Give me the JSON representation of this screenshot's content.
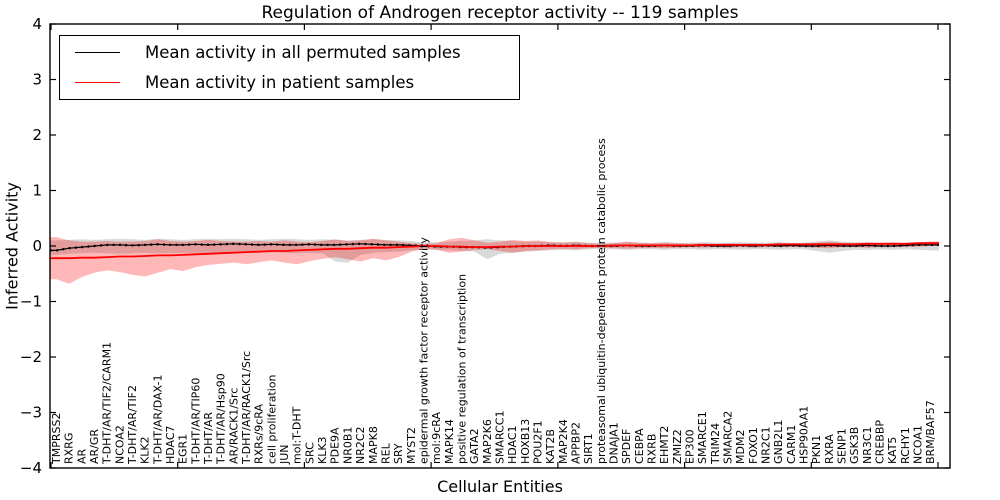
{
  "figure": {
    "title": "Regulation of Androgen receptor activity -- 119 samples",
    "xlabel": "Cellular Entities",
    "ylabel": "Inferred Activity",
    "legend": [
      {
        "label": "Mean activity in all permuted samples",
        "color": "#000000"
      },
      {
        "label": "Mean activity in patient samples",
        "color": "#ff0000"
      }
    ]
  },
  "chart_data": {
    "type": "line",
    "title": "Regulation of Androgen receptor activity -- 119 samples",
    "xlabel": "Cellular Entities",
    "ylabel": "Inferred Activity",
    "ylim": [
      -4,
      4
    ],
    "yticks": [
      -4,
      -3,
      -2,
      -1,
      0,
      1,
      2,
      3,
      4
    ],
    "ytick_labels": [
      "−4",
      "−3",
      "−2",
      "−1",
      "0",
      "1",
      "2",
      "3",
      "4"
    ],
    "grid": false,
    "legend_position": "upper left",
    "colors": {
      "permuted_line": "#000000",
      "patient_line": "#ff0000",
      "permuted_band": "rgba(0,0,0,0.15)",
      "patient_band": "rgba(255,0,0,0.28)"
    },
    "categories": [
      "TMPRSS2",
      "RXRG",
      "AR",
      "AR/GR",
      "T-DHT/AR/TIF2/CARM1",
      "NCOA2",
      "T-DHT/AR/TIF2",
      "KLK2",
      "T-DHT/AR/DAX-1",
      "HDAC7",
      "EGR1",
      "T-DHT/AR/TIP60",
      "T-DHT/AR",
      "T-DHT/AR/Hsp90",
      "AR/RACK1/Src",
      "T-DHT/AR/RACK1/Src",
      "RXRs/9cRA",
      "cell proliferation",
      "JUN",
      "mol:T-DHT",
      "SRC",
      "KLK3",
      "PDE9A",
      "NR0B1",
      "NR2C2",
      "MAPK8",
      "REL",
      "SRY",
      "MYST2",
      "epidermal growth factor receptor activity",
      "mol:9cRA",
      "MAPK14",
      "positive regulation of transcription",
      "GATA2",
      "MAP2K6",
      "SMARCC1",
      "HDAC1",
      "HOXB13",
      "POU2F1",
      "KAT2B",
      "MAP2K4",
      "APPBP2",
      "SIRT1",
      "proteasomal ubiquitin-dependent protein catabolic process",
      "DNAJA1",
      "SPDEF",
      "CEBPA",
      "RXRB",
      "EHMT2",
      "ZMIZ2",
      "EP300",
      "SMARCE1",
      "TRIM24",
      "SMARCA2",
      "MDM2",
      "FOXO1",
      "NR2C1",
      "GNB2L1",
      "CARM1",
      "HSP90AA1",
      "PKN1",
      "RXRA",
      "SENP1",
      "GSK3B",
      "NR3C1",
      "CREBBP",
      "KAT5",
      "RCHY1",
      "NCOA1",
      "BRM/BAF57"
    ],
    "series": [
      {
        "name": "Mean activity in all permuted samples",
        "color": "#000000",
        "values": [
          -0.08,
          -0.04,
          -0.02,
          0.0,
          0.02,
          0.02,
          0.01,
          0.02,
          0.03,
          0.02,
          0.02,
          0.03,
          0.02,
          0.03,
          0.04,
          0.03,
          0.02,
          0.03,
          0.02,
          0.02,
          0.03,
          0.02,
          0.02,
          0.03,
          0.04,
          0.03,
          0.02,
          0.02,
          0.01,
          0.0,
          -0.01,
          -0.01,
          -0.02,
          -0.02,
          -0.03,
          -0.02,
          -0.01,
          0.0,
          0.0,
          0.01,
          0.0,
          0.01,
          0.0,
          0.0,
          0.0,
          0.01,
          0.0,
          0.0,
          0.01,
          0.0,
          0.0,
          0.01,
          0.0,
          0.0,
          0.01,
          0.0,
          0.01,
          0.0,
          0.01,
          0.0,
          0.0,
          0.01,
          0.0,
          0.0,
          0.01,
          0.0,
          0.0,
          0.01,
          0.02,
          0.02
        ]
      },
      {
        "name": "Mean activity in patient samples",
        "color": "#ff0000",
        "values": [
          -0.22,
          -0.22,
          -0.21,
          -0.21,
          -0.2,
          -0.19,
          -0.19,
          -0.18,
          -0.17,
          -0.17,
          -0.16,
          -0.15,
          -0.14,
          -0.13,
          -0.12,
          -0.11,
          -0.1,
          -0.09,
          -0.09,
          -0.08,
          -0.07,
          -0.06,
          -0.05,
          -0.05,
          -0.04,
          -0.03,
          -0.03,
          -0.02,
          -0.01,
          0.0,
          0.0,
          -0.01,
          -0.01,
          -0.02,
          -0.02,
          -0.01,
          -0.01,
          0.0,
          0.0,
          0.0,
          0.0,
          0.0,
          0.0,
          0.0,
          0.01,
          0.01,
          0.01,
          0.01,
          0.01,
          0.01,
          0.01,
          0.02,
          0.02,
          0.02,
          0.02,
          0.02,
          0.02,
          0.03,
          0.03,
          0.03,
          0.03,
          0.03,
          0.03,
          0.03,
          0.04,
          0.04,
          0.04,
          0.04,
          0.05,
          0.05
        ]
      }
    ],
    "bands": [
      {
        "name": "permuted samples range",
        "color": "rgba(0,0,0,0.15)",
        "upper": [
          0.1,
          0.11,
          0.12,
          0.11,
          0.12,
          0.13,
          0.12,
          0.11,
          0.13,
          0.12,
          0.11,
          0.12,
          0.13,
          0.12,
          0.13,
          0.12,
          0.11,
          0.12,
          0.13,
          0.12,
          0.11,
          0.12,
          0.11,
          0.1,
          0.11,
          0.12,
          0.11,
          0.1,
          0.09,
          0.06,
          0.07,
          0.08,
          0.09,
          0.1,
          0.12,
          0.1,
          0.09,
          0.08,
          0.08,
          0.07,
          0.07,
          0.08,
          0.06,
          0.06,
          0.06,
          0.07,
          0.06,
          0.06,
          0.07,
          0.06,
          0.06,
          0.07,
          0.06,
          0.06,
          0.07,
          0.06,
          0.06,
          0.07,
          0.06,
          0.06,
          0.08,
          0.1,
          0.08,
          0.07,
          0.07,
          0.06,
          0.07,
          0.06,
          0.07,
          0.08
        ],
        "lower": [
          -0.16,
          -0.14,
          -0.13,
          -0.12,
          -0.13,
          -0.14,
          -0.13,
          -0.12,
          -0.13,
          -0.12,
          -0.13,
          -0.12,
          -0.13,
          -0.12,
          -0.12,
          -0.13,
          -0.12,
          -0.11,
          -0.12,
          -0.13,
          -0.12,
          -0.13,
          -0.28,
          -0.3,
          -0.16,
          -0.12,
          -0.11,
          -0.1,
          -0.08,
          -0.06,
          -0.07,
          -0.08,
          -0.09,
          -0.1,
          -0.24,
          -0.14,
          -0.12,
          -0.1,
          -0.09,
          -0.08,
          -0.07,
          -0.08,
          -0.06,
          -0.06,
          -0.06,
          -0.07,
          -0.06,
          -0.06,
          -0.07,
          -0.06,
          -0.06,
          -0.07,
          -0.06,
          -0.06,
          -0.07,
          -0.06,
          -0.06,
          -0.07,
          -0.06,
          -0.06,
          -0.09,
          -0.12,
          -0.09,
          -0.07,
          -0.07,
          -0.06,
          -0.07,
          -0.06,
          -0.07,
          -0.08
        ]
      },
      {
        "name": "patient samples range",
        "color": "rgba(255,0,0,0.28)",
        "upper": [
          0.16,
          0.1,
          0.08,
          0.08,
          0.09,
          0.08,
          0.08,
          0.09,
          0.12,
          0.09,
          0.08,
          0.09,
          0.11,
          0.09,
          0.08,
          0.08,
          0.09,
          0.08,
          0.1,
          0.08,
          0.07,
          0.09,
          0.12,
          0.09,
          0.1,
          0.13,
          0.1,
          0.08,
          0.05,
          0.04,
          0.05,
          0.12,
          0.15,
          0.1,
          0.06,
          0.08,
          0.11,
          0.09,
          0.1,
          0.07,
          0.06,
          0.07,
          0.05,
          0.04,
          0.05,
          0.08,
          0.06,
          0.05,
          0.06,
          0.05,
          0.04,
          0.05,
          0.04,
          0.05,
          0.04,
          0.05,
          0.04,
          0.05,
          0.04,
          0.05,
          0.06,
          0.08,
          0.06,
          0.05,
          0.06,
          0.05,
          0.06,
          0.05,
          0.06,
          0.08
        ],
        "lower": [
          -0.6,
          -0.68,
          -0.56,
          -0.48,
          -0.44,
          -0.47,
          -0.52,
          -0.55,
          -0.48,
          -0.42,
          -0.45,
          -0.38,
          -0.34,
          -0.32,
          -0.3,
          -0.33,
          -0.29,
          -0.26,
          -0.3,
          -0.33,
          -0.27,
          -0.23,
          -0.2,
          -0.24,
          -0.28,
          -0.22,
          -0.26,
          -0.2,
          -0.1,
          -0.05,
          -0.07,
          -0.12,
          -0.1,
          -0.07,
          -0.06,
          -0.09,
          -0.12,
          -0.09,
          -0.08,
          -0.06,
          -0.05,
          -0.06,
          -0.04,
          -0.03,
          -0.04,
          -0.05,
          -0.04,
          -0.03,
          -0.04,
          -0.03,
          -0.02,
          -0.03,
          -0.02,
          -0.03,
          -0.02,
          -0.03,
          -0.02,
          -0.02,
          -0.02,
          -0.02,
          -0.03,
          -0.04,
          -0.02,
          -0.02,
          -0.03,
          -0.02,
          -0.02,
          -0.02,
          -0.01,
          0.0
        ]
      }
    ]
  }
}
